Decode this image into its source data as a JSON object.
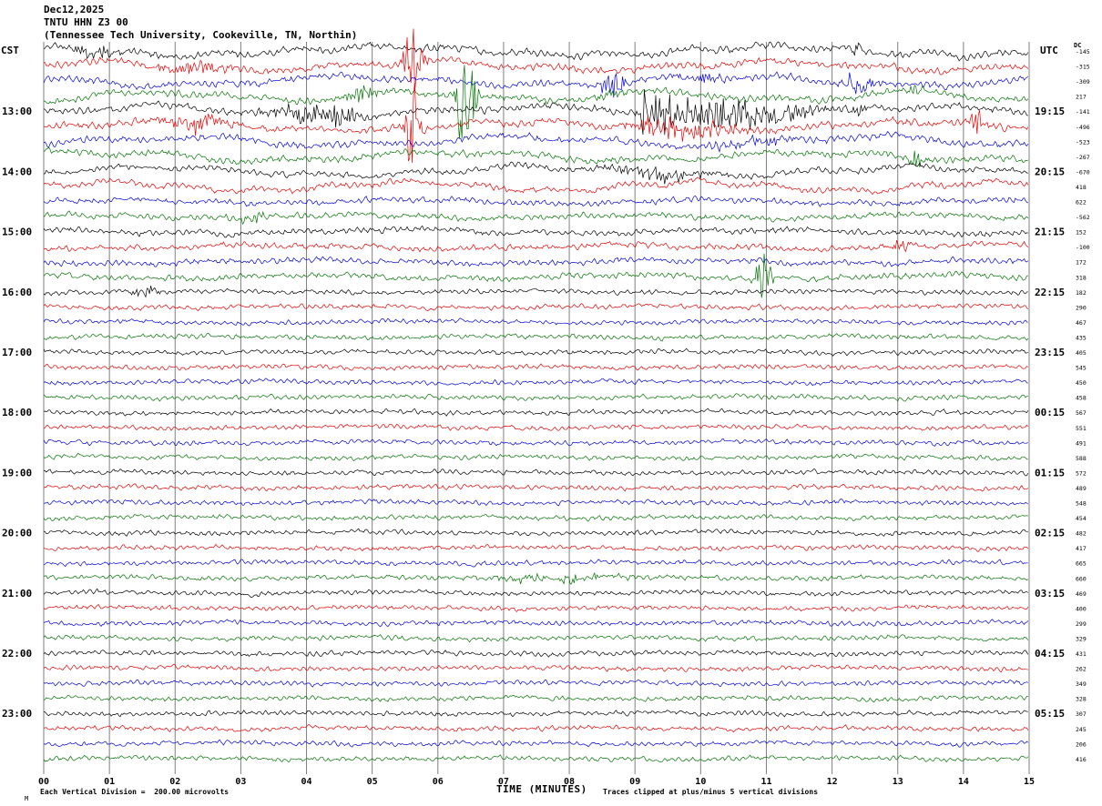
{
  "header": {
    "date": "Dec12,2025",
    "station": "TNTU HHN Z3 00",
    "location": "(Tennessee Tech University, Cookeville, TN, Northin)"
  },
  "axes": {
    "left_header": "CST",
    "right_header": "UTC",
    "dc_header": "DC",
    "xlabel": "TIME (MINUTES)",
    "x_ticks": [
      "00",
      "01",
      "02",
      "03",
      "04",
      "05",
      "06",
      "07",
      "08",
      "09",
      "10",
      "11",
      "12",
      "13",
      "14",
      "15"
    ]
  },
  "footer": {
    "scale_note": "Each Vertical Division =  200.00 microvolts",
    "clip_note": "Traces clipped at plus/minus 5 vertical divisions",
    "artifact": "M"
  },
  "chart_data": {
    "type": "line",
    "title": "TNTU HHN Z3 00 helicorder, Dec12,2025 (Tennessee Tech University, Cookeville, TN)",
    "xlabel": "TIME (MINUTES)",
    "x_range": [
      0,
      15
    ],
    "minutes_per_row": 15,
    "row_count": 48,
    "grid": "vertical lines each minute",
    "color_cycle": [
      "black",
      "red",
      "blue",
      "green"
    ],
    "color_hex": {
      "black": "#000000",
      "red": "#e80000",
      "blue": "#0000dd",
      "green": "#007400"
    },
    "cst_labels": {
      "4": "13:00",
      "8": "14:00",
      "12": "15:00",
      "16": "16:00",
      "20": "17:00",
      "24": "18:00",
      "28": "19:00",
      "32": "20:00",
      "36": "21:00",
      "40": "22:00",
      "44": "23:00"
    },
    "utc_labels": {
      "4": "19:15",
      "8": "20:15",
      "12": "21:15",
      "16": "22:15",
      "20": "23:15",
      "24": "00:15",
      "28": "01:15",
      "32": "02:15",
      "36": "03:15",
      "40": "04:15",
      "44": "05:15"
    },
    "dc_values": [
      -145,
      -315,
      -309,
      217,
      -141,
      -496,
      -523,
      -267,
      -670,
      418,
      622,
      -562,
      152,
      -100,
      172,
      318,
      182,
      290,
      467,
      435,
      405,
      545,
      450,
      458,
      567,
      551,
      491,
      588,
      572,
      489,
      548,
      454,
      482,
      417,
      665,
      660,
      469,
      400,
      299,
      329,
      431,
      262,
      349,
      328,
      307,
      245,
      206,
      416
    ],
    "scale_microvolts_per_division": 200.0,
    "clip_divisions": 5,
    "events": [
      {
        "row": 0,
        "minute": 0.85,
        "duration": 0.5,
        "amplitude": 7
      },
      {
        "row": 0,
        "minute": 12.4,
        "duration": 0.12,
        "amplitude": 11
      },
      {
        "row": 1,
        "minute": 2.3,
        "duration": 0.8,
        "amplitude": 6
      },
      {
        "row": 1,
        "minute": 5.62,
        "duration": 0.2,
        "amplitude": 44
      },
      {
        "row": 2,
        "minute": 8.65,
        "duration": 0.25,
        "amplitude": 16
      },
      {
        "row": 2,
        "minute": 9.95,
        "duration": 0.5,
        "amplitude": 7
      },
      {
        "row": 2,
        "minute": 12.42,
        "duration": 0.35,
        "amplitude": 14
      },
      {
        "row": 3,
        "minute": 4.85,
        "duration": 0.3,
        "amplitude": 11
      },
      {
        "row": 3,
        "minute": 6.42,
        "duration": 0.18,
        "amplitude": 78
      },
      {
        "row": 3,
        "minute": 8.6,
        "duration": 0.3,
        "amplitude": 6
      },
      {
        "row": 3,
        "minute": 13.2,
        "duration": 0.2,
        "amplitude": 6
      },
      {
        "row": 4,
        "minute": 4.2,
        "duration": 1.0,
        "amplitude": 13
      },
      {
        "row": 4,
        "minute": 9.17,
        "duration": 0.08,
        "amplitude": 30
      },
      {
        "row": 4,
        "minute": 9.5,
        "duration": 0.5,
        "amplitude": 18
      },
      {
        "row": 4,
        "minute": 10.4,
        "duration": 1.6,
        "amplitude": 16
      },
      {
        "row": 4,
        "minute": 12.4,
        "duration": 0.15,
        "amplitude": 8
      },
      {
        "row": 5,
        "minute": 2.3,
        "duration": 0.7,
        "amplitude": 9
      },
      {
        "row": 5,
        "minute": 5.62,
        "duration": 0.15,
        "amplitude": 58
      },
      {
        "row": 5,
        "minute": 9.4,
        "duration": 0.5,
        "amplitude": 14
      },
      {
        "row": 5,
        "minute": 10.1,
        "duration": 0.9,
        "amplitude": 8
      },
      {
        "row": 5,
        "minute": 14.2,
        "duration": 0.15,
        "amplitude": 18
      },
      {
        "row": 6,
        "minute": 10.9,
        "duration": 1.2,
        "amplitude": 5
      },
      {
        "row": 7,
        "minute": 13.25,
        "duration": 0.2,
        "amplitude": 10
      },
      {
        "row": 8,
        "minute": 9.3,
        "duration": 1.0,
        "amplitude": 6
      },
      {
        "row": 11,
        "minute": 3.15,
        "duration": 0.35,
        "amplitude": 8
      },
      {
        "row": 13,
        "minute": 13.05,
        "duration": 0.2,
        "amplitude": 6
      },
      {
        "row": 15,
        "minute": 10.95,
        "duration": 0.15,
        "amplitude": 26
      },
      {
        "row": 16,
        "minute": 1.55,
        "duration": 0.3,
        "amplitude": 6
      },
      {
        "row": 35,
        "minute": 7.9,
        "duration": 1.5,
        "amplitude": 4
      }
    ]
  }
}
